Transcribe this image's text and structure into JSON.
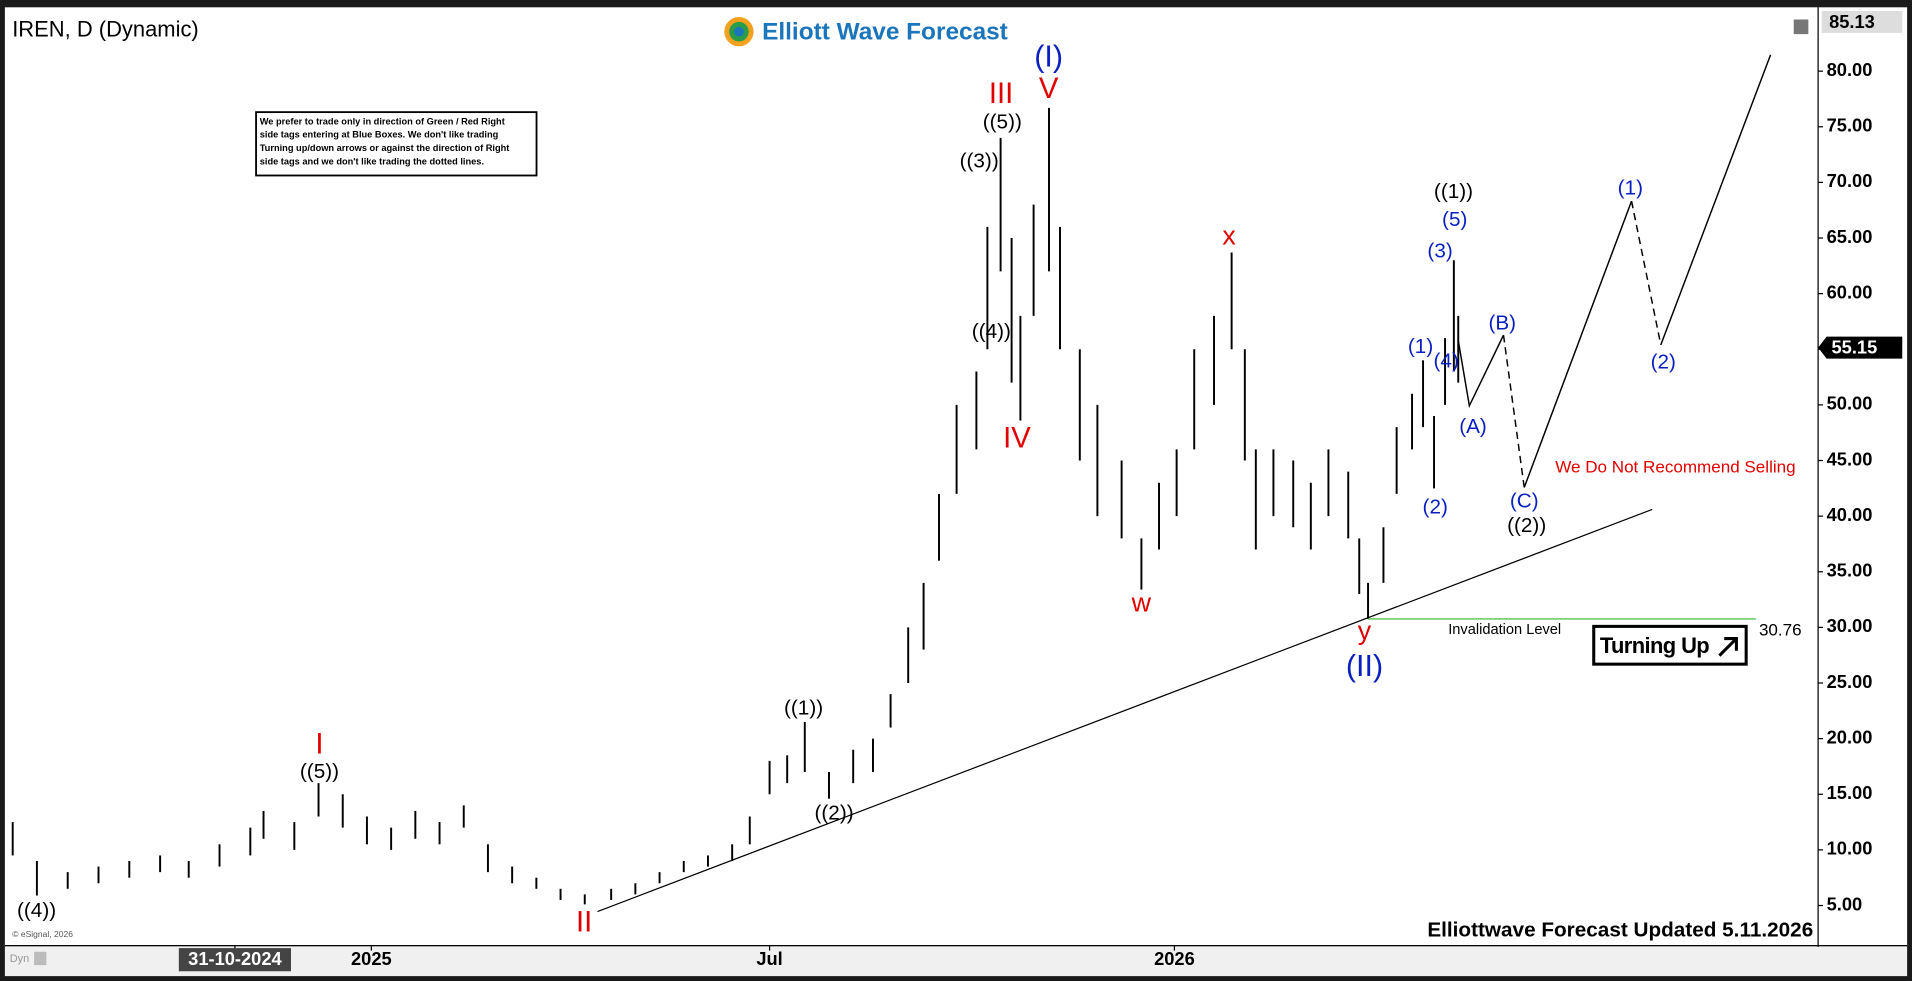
{
  "chart_data": {
    "type": "range",
    "title": "IREN, D (Dynamic)",
    "logo": "Elliott Wave Forecast",
    "note": [
      "We prefer to trade only in direction of Green / Red Right",
      "side tags entering at Blue Boxes. We don't like trading",
      "Turning up/down arrows or against the direction of Right",
      "side tags and we don't like trading the dotted lines."
    ],
    "warning": "We Do Not Recommend Selling",
    "invalidation_label": "Invalidation Level",
    "invalidation": 30.76,
    "signal": "Turning Up",
    "footer": "Elliottwave Forecast Updated 5.11.2026",
    "copyright": "© eSignal, 2026",
    "corner": "Dyn",
    "last_price": 55.15,
    "top_price": 85.13,
    "labels_black": [
      "((4))",
      "((5))",
      "((1))",
      "((2))",
      "((3))",
      "((5))",
      "((4))",
      "((1))",
      "((2))"
    ],
    "labels_red": [
      "I",
      "II",
      "III",
      "IV",
      "V",
      "w",
      "x",
      "y"
    ],
    "labels_blue": [
      "(I)",
      "(II)",
      "(5)",
      "(3)",
      "(1)",
      "(4)",
      "(2)",
      "(A)",
      "(B)",
      "(C)",
      "(1)",
      "(2)"
    ],
    "xlim": [
      "2024-07-19",
      "2026-10-20"
    ],
    "xticks": [
      {
        "value": "2024-10-31",
        "label": "31-10-2024"
      },
      {
        "value": "2025-01-01",
        "label": "2025"
      },
      {
        "value": "2025-07-01",
        "label": "Jul"
      },
      {
        "value": "2026-01-01",
        "label": "2026"
      }
    ],
    "ylim": [
      1.5,
      85.3
    ],
    "yticks": [
      {
        "value": 5,
        "label": "5.00"
      },
      {
        "value": 10,
        "label": "10.00"
      },
      {
        "value": 15,
        "label": "15.00"
      },
      {
        "value": 20,
        "label": "20.00"
      },
      {
        "value": 25,
        "label": "25.00"
      },
      {
        "value": 30,
        "label": "30.00"
      },
      {
        "value": 35,
        "label": "35.00"
      },
      {
        "value": 40,
        "label": "40.00"
      },
      {
        "value": 45,
        "label": "45.00"
      },
      {
        "value": 50,
        "label": "50.00"
      },
      {
        "value": 55,
        "label": "55.00"
      },
      {
        "value": 60,
        "label": "60.00"
      },
      {
        "value": 65,
        "label": "65.00"
      },
      {
        "value": 70,
        "label": "70.00"
      },
      {
        "value": 75,
        "label": "75.00"
      },
      {
        "value": 80,
        "label": "80.00"
      }
    ],
    "color": "#000000",
    "x": [
      "2024-07-22",
      "2024-08-02",
      "2024-08-16",
      "2024-08-30",
      "2024-09-13",
      "2024-09-27",
      "2024-10-10",
      "2024-10-24",
      "2024-11-07",
      "2024-11-13",
      "2024-11-27",
      "2024-12-08",
      "2024-12-19",
      "2024-12-30",
      "2025-01-10",
      "2025-01-21",
      "2025-02-01",
      "2025-02-12",
      "2025-02-23",
      "2025-03-06",
      "2025-03-17",
      "2025-03-28",
      "2025-04-08",
      "2025-04-20",
      "2025-05-01",
      "2025-05-12",
      "2025-05-23",
      "2025-06-03",
      "2025-06-14",
      "2025-06-22",
      "2025-07-01",
      "2025-07-09",
      "2025-07-17",
      "2025-07-28",
      "2025-08-08",
      "2025-08-17",
      "2025-08-25",
      "2025-09-02",
      "2025-09-09",
      "2025-09-16",
      "2025-09-24",
      "2025-10-03",
      "2025-10-08",
      "2025-10-14",
      "2025-10-19",
      "2025-10-23",
      "2025-10-29",
      "2025-11-05",
      "2025-11-10",
      "2025-11-19",
      "2025-11-27",
      "2025-12-08",
      "2025-12-17",
      "2025-12-25",
      "2026-01-02",
      "2026-01-10",
      "2026-01-19",
      "2026-01-27",
      "2026-02-02",
      "2026-02-07",
      "2026-02-15",
      "2026-02-24",
      "2026-03-04",
      "2026-03-12",
      "2026-03-21",
      "2026-03-26",
      "2026-03-30",
      "2026-04-06",
      "2026-04-12",
      "2026-04-19",
      "2026-04-24",
      "2026-04-29",
      "2026-05-04",
      "2026-05-08",
      "2026-05-10"
    ],
    "high": [
      12.5,
      9,
      8,
      8.5,
      9,
      9.5,
      9,
      10.5,
      12,
      13.5,
      12.5,
      16,
      15,
      13,
      12,
      13.5,
      12.5,
      14,
      10.5,
      8.5,
      7.5,
      6.5,
      6,
      6.5,
      7,
      8,
      9,
      9.5,
      10.5,
      13,
      18,
      18.5,
      21.5,
      17,
      19,
      20,
      24,
      30,
      34,
      42,
      50,
      53,
      66,
      74,
      65,
      58,
      68,
      76.7,
      66,
      55,
      50,
      45,
      38,
      43,
      46,
      55,
      58,
      63.7,
      55,
      46,
      46,
      45,
      43,
      46,
      44,
      38,
      34,
      39,
      48,
      51,
      54,
      49,
      56,
      63,
      58
    ],
    "low": [
      9.5,
      5.9,
      6.5,
      7,
      7.5,
      8,
      7.5,
      8.5,
      9.5,
      11,
      10,
      13,
      12,
      10.5,
      10,
      11,
      10.5,
      12,
      8,
      7,
      6.5,
      5.5,
      5.1,
      5.5,
      6,
      7,
      8,
      8.5,
      9,
      10.5,
      15,
      16,
      17,
      14.6,
      16,
      17,
      21,
      25,
      28,
      36,
      42,
      46,
      55,
      62,
      52,
      48.6,
      58,
      62,
      55,
      45,
      40,
      38,
      33.4,
      37,
      40,
      46,
      50,
      55,
      45,
      37,
      40,
      39,
      37,
      40,
      38,
      33,
      30.76,
      34,
      42,
      46,
      48,
      42.5,
      50,
      53,
      52
    ]
  }
}
